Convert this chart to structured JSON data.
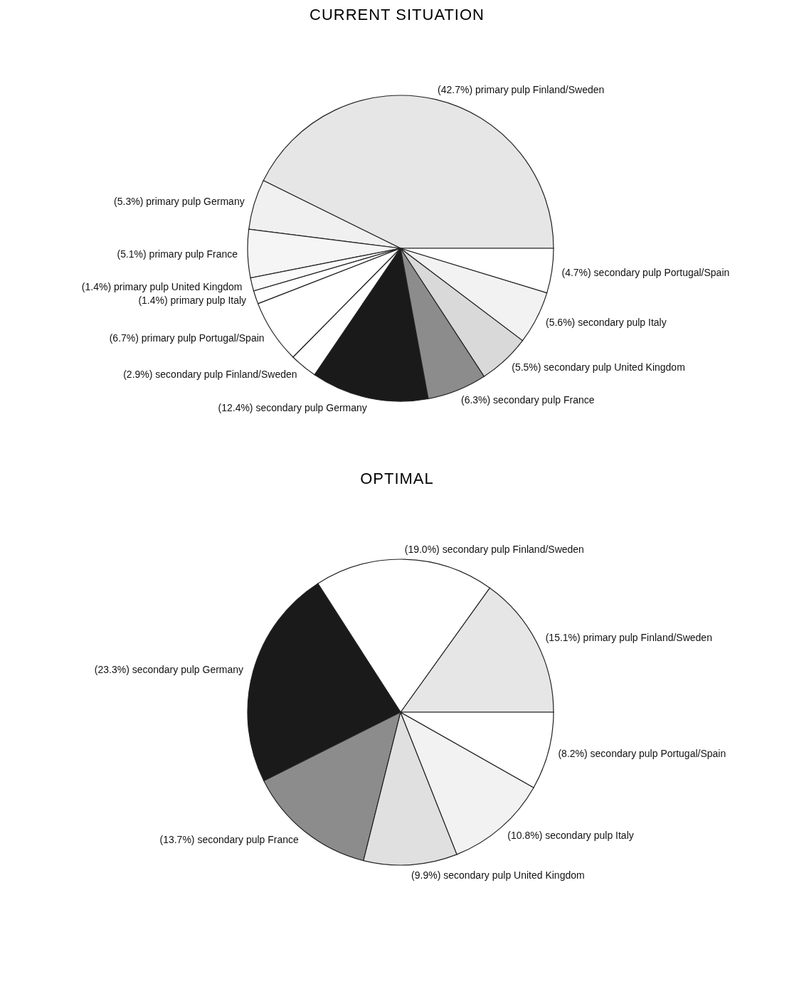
{
  "chart_data": [
    {
      "type": "pie",
      "title": "CURRENT SITUATION",
      "categories": [
        "primary pulp Finland/Sweden",
        "primary pulp Germany",
        "primary pulp France",
        "primary pulp United Kingdom",
        "primary pulp Italy",
        "primary pulp Portugal/Spain",
        "secondary pulp Finland/Sweden",
        "secondary pulp Germany",
        "secondary pulp France",
        "secondary pulp United Kingdom",
        "secondary pulp Italy",
        "secondary pulp Portugal/Spain"
      ],
      "values": [
        42.7,
        5.3,
        5.1,
        1.4,
        1.4,
        6.7,
        2.9,
        12.4,
        6.3,
        5.5,
        5.6,
        4.7
      ],
      "value_labels": [
        "(42.7%)",
        "(5.3%)",
        "(5.1%)",
        "(1.4%)",
        "(1.4%)",
        "(6.7%)",
        "(2.9%)",
        "(12.4%)",
        "(6.3%)",
        "(5.5%)",
        "(5.6%)",
        "(4.7%)"
      ],
      "colors": [
        "#e6e6e6",
        "#f0f0f0",
        "#f5f5f5",
        "#fafafa",
        "#ffffff",
        "#ffffff",
        "#ffffff",
        "#1a1a1a",
        "#8c8c8c",
        "#d9d9d9",
        "#f2f2f2",
        "#ffffff"
      ]
    },
    {
      "type": "pie",
      "title": "OPTIMAL",
      "categories": [
        "primary pulp Finland/Sweden",
        "secondary pulp Finland/Sweden",
        "secondary pulp Germany",
        "secondary pulp France",
        "secondary pulp United Kingdom",
        "secondary pulp Italy",
        "secondary pulp Portugal/Spain"
      ],
      "values": [
        15.1,
        19.0,
        23.3,
        13.7,
        9.9,
        10.8,
        8.2
      ],
      "value_labels": [
        "(15.1%)",
        "(19.0%)",
        "(23.3%)",
        "(13.7%)",
        "(9.9%)",
        "(10.8%)",
        "(8.2%)"
      ],
      "colors": [
        "#e6e6e6",
        "#ffffff",
        "#1a1a1a",
        "#8c8c8c",
        "#e0e0e0",
        "#f2f2f2",
        "#ffffff"
      ]
    }
  ]
}
